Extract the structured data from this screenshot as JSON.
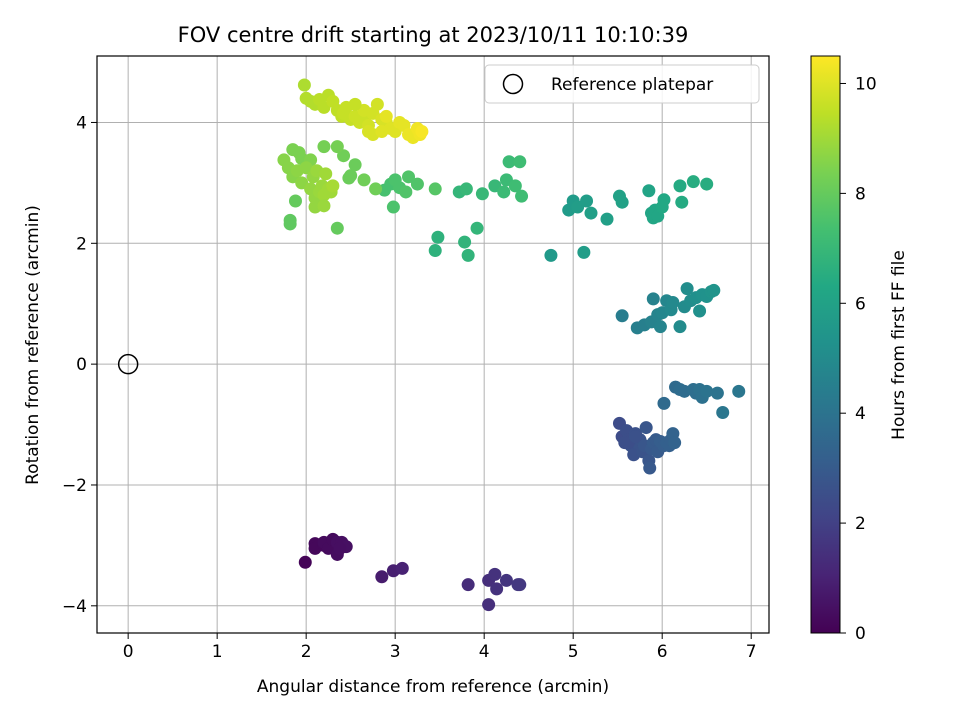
{
  "chart_data": {
    "type": "scatter",
    "title": "FOV centre drift starting at 2023/10/11 10:10:39",
    "xlabel": "Angular distance from reference (arcmin)",
    "ylabel": "Rotation from reference (arcmin)",
    "xlim": [
      -0.35,
      7.2
    ],
    "ylim": [
      -4.45,
      5.1
    ],
    "xticks": [
      0,
      1,
      2,
      3,
      4,
      5,
      6,
      7
    ],
    "yticks": [
      -4,
      -2,
      0,
      2,
      4
    ],
    "grid": true,
    "legend": {
      "position": "top-right",
      "label": "Reference platepar"
    },
    "reference_point": {
      "x": 0,
      "y": 0
    },
    "colorbar": {
      "label": "Hours from first FF file",
      "colormap": "viridis",
      "range": [
        0,
        10.5
      ],
      "ticks": [
        0,
        2,
        4,
        6,
        8,
        10
      ]
    },
    "points": [
      [
        1.99,
        -3.28,
        0.1
      ],
      [
        2.1,
        -2.97,
        0.2
      ],
      [
        2.1,
        -3.05,
        0.2
      ],
      [
        2.2,
        -3.0,
        0.2
      ],
      [
        2.2,
        -2.95,
        0.3
      ],
      [
        2.25,
        -3.05,
        0.3
      ],
      [
        2.3,
        -2.9,
        0.3
      ],
      [
        2.35,
        -3.15,
        0.35
      ],
      [
        2.35,
        -2.95,
        0.4
      ],
      [
        2.4,
        -2.95,
        0.4
      ],
      [
        2.45,
        -3.02,
        0.45
      ],
      [
        2.38,
        -3.05,
        0.4
      ],
      [
        2.85,
        -3.52,
        0.8
      ],
      [
        2.98,
        -3.42,
        0.9
      ],
      [
        3.08,
        -3.38,
        1.0
      ],
      [
        3.82,
        -3.65,
        1.3
      ],
      [
        4.05,
        -3.98,
        1.4
      ],
      [
        4.05,
        -3.58,
        1.4
      ],
      [
        4.12,
        -3.48,
        1.5
      ],
      [
        4.14,
        -3.72,
        1.5
      ],
      [
        4.25,
        -3.58,
        1.6
      ],
      [
        4.4,
        -3.65,
        1.7
      ],
      [
        4.38,
        -3.65,
        1.7
      ],
      [
        5.52,
        -0.98,
        2.4
      ],
      [
        5.55,
        -1.2,
        2.4
      ],
      [
        5.58,
        -1.3,
        2.5
      ],
      [
        5.6,
        -1.1,
        2.5
      ],
      [
        5.62,
        -1.25,
        2.5
      ],
      [
        5.65,
        -1.35,
        2.6
      ],
      [
        5.68,
        -1.5,
        2.6
      ],
      [
        5.7,
        -1.15,
        2.6
      ],
      [
        5.72,
        -1.3,
        2.7
      ],
      [
        5.75,
        -1.25,
        2.7
      ],
      [
        5.78,
        -1.45,
        2.7
      ],
      [
        5.8,
        -1.35,
        2.8
      ],
      [
        5.82,
        -1.05,
        2.8
      ],
      [
        5.85,
        -1.6,
        2.8
      ],
      [
        5.86,
        -1.72,
        2.9
      ],
      [
        5.88,
        -1.4,
        2.9
      ],
      [
        5.9,
        -1.3,
        3.0
      ],
      [
        5.93,
        -1.25,
        3.0
      ],
      [
        5.95,
        -1.45,
        3.0
      ],
      [
        5.98,
        -1.28,
        3.1
      ],
      [
        6.02,
        -1.35,
        3.1
      ],
      [
        6.05,
        -1.3,
        3.2
      ],
      [
        6.08,
        -1.35,
        3.2
      ],
      [
        6.1,
        -1.25,
        3.2
      ],
      [
        6.12,
        -1.15,
        3.3
      ],
      [
        6.14,
        -1.3,
        3.3
      ],
      [
        5.62,
        -1.3,
        2.5
      ],
      [
        5.7,
        -1.2,
        2.6
      ],
      [
        6.02,
        -0.65,
        3.6
      ],
      [
        6.15,
        -0.38,
        3.6
      ],
      [
        6.2,
        -0.42,
        3.7
      ],
      [
        6.25,
        -0.45,
        3.7
      ],
      [
        6.35,
        -0.42,
        3.8
      ],
      [
        6.38,
        -0.48,
        3.8
      ],
      [
        6.42,
        -0.42,
        3.9
      ],
      [
        6.45,
        -0.55,
        3.9
      ],
      [
        6.5,
        -0.45,
        4.0
      ],
      [
        6.62,
        -0.48,
        4.0
      ],
      [
        6.68,
        -0.8,
        4.1
      ],
      [
        6.86,
        -0.45,
        4.1
      ],
      [
        5.55,
        0.8,
        4.4
      ],
      [
        5.72,
        0.6,
        4.5
      ],
      [
        5.8,
        0.65,
        4.5
      ],
      [
        5.88,
        0.7,
        4.6
      ],
      [
        5.9,
        1.08,
        4.6
      ],
      [
        5.95,
        0.82,
        4.7
      ],
      [
        5.98,
        0.62,
        4.7
      ],
      [
        6.0,
        0.85,
        4.8
      ],
      [
        6.05,
        1.05,
        4.8
      ],
      [
        6.1,
        0.9,
        4.9
      ],
      [
        6.12,
        1.02,
        4.9
      ],
      [
        6.2,
        0.62,
        5.0
      ],
      [
        6.25,
        0.95,
        5.0
      ],
      [
        6.28,
        1.25,
        5.1
      ],
      [
        6.32,
        1.05,
        5.1
      ],
      [
        6.38,
        1.1,
        5.2
      ],
      [
        6.42,
        0.88,
        5.2
      ],
      [
        6.45,
        1.15,
        5.3
      ],
      [
        6.5,
        1.12,
        5.3
      ],
      [
        6.55,
        1.2,
        5.4
      ],
      [
        6.58,
        1.22,
        5.4
      ],
      [
        4.75,
        1.8,
        5.6
      ],
      [
        4.95,
        2.55,
        5.7
      ],
      [
        5.0,
        2.7,
        5.7
      ],
      [
        5.05,
        2.6,
        5.8
      ],
      [
        5.12,
        1.85,
        5.8
      ],
      [
        5.15,
        2.7,
        5.8
      ],
      [
        5.2,
        2.5,
        5.9
      ],
      [
        5.38,
        2.4,
        5.9
      ],
      [
        5.52,
        2.78,
        6.0
      ],
      [
        5.55,
        2.68,
        6.0
      ],
      [
        5.85,
        2.87,
        6.1
      ],
      [
        5.88,
        2.5,
        6.1
      ],
      [
        5.9,
        2.42,
        6.2
      ],
      [
        5.92,
        2.55,
        6.2
      ],
      [
        5.95,
        2.45,
        6.2
      ],
      [
        6.0,
        2.6,
        6.3
      ],
      [
        6.02,
        2.72,
        6.3
      ],
      [
        6.2,
        2.95,
        6.4
      ],
      [
        6.22,
        2.68,
        6.4
      ],
      [
        6.35,
        3.02,
        6.5
      ],
      [
        6.5,
        2.98,
        6.5
      ],
      [
        3.45,
        1.88,
        6.7
      ],
      [
        3.48,
        2.1,
        6.7
      ],
      [
        3.78,
        2.02,
        6.8
      ],
      [
        3.82,
        1.8,
        6.8
      ],
      [
        3.92,
        2.25,
        6.9
      ],
      [
        3.72,
        2.85,
        6.9
      ],
      [
        3.8,
        2.9,
        7.0
      ],
      [
        3.98,
        2.82,
        7.0
      ],
      [
        4.12,
        2.95,
        7.0
      ],
      [
        4.22,
        2.85,
        7.1
      ],
      [
        4.25,
        3.05,
        7.1
      ],
      [
        4.28,
        3.35,
        7.1
      ],
      [
        4.35,
        2.95,
        7.2
      ],
      [
        4.4,
        3.35,
        7.2
      ],
      [
        4.42,
        2.78,
        7.2
      ],
      [
        2.88,
        2.88,
        7.4
      ],
      [
        2.95,
        2.98,
        7.4
      ],
      [
        2.98,
        2.6,
        7.5
      ],
      [
        3.0,
        3.05,
        7.5
      ],
      [
        3.05,
        2.92,
        7.5
      ],
      [
        3.12,
        2.85,
        7.6
      ],
      [
        3.15,
        3.1,
        7.6
      ],
      [
        3.25,
        2.98,
        7.6
      ],
      [
        3.45,
        2.9,
        7.7
      ],
      [
        1.82,
        2.32,
        7.9
      ],
      [
        1.82,
        2.38,
        7.9
      ],
      [
        1.88,
        2.7,
        8.0
      ],
      [
        2.35,
        2.25,
        8.0
      ],
      [
        2.48,
        3.08,
        8.1
      ],
      [
        2.5,
        3.12,
        8.1
      ],
      [
        2.55,
        3.3,
        8.1
      ],
      [
        2.65,
        3.05,
        8.2
      ],
      [
        2.78,
        2.9,
        8.2
      ],
      [
        2.42,
        3.45,
        8.2
      ],
      [
        2.35,
        3.6,
        8.3
      ],
      [
        2.2,
        3.6,
        8.3
      ],
      [
        1.95,
        3.4,
        8.4
      ],
      [
        1.85,
        3.55,
        8.4
      ],
      [
        1.92,
        3.5,
        8.4
      ],
      [
        2.05,
        3.38,
        8.5
      ],
      [
        1.75,
        3.38,
        8.6
      ],
      [
        1.8,
        3.25,
        8.6
      ],
      [
        1.85,
        3.1,
        8.6
      ],
      [
        1.9,
        3.2,
        8.7
      ],
      [
        1.95,
        3.0,
        8.7
      ],
      [
        2.0,
        3.25,
        8.7
      ],
      [
        2.05,
        2.9,
        8.8
      ],
      [
        2.08,
        3.1,
        8.8
      ],
      [
        2.1,
        2.75,
        8.8
      ],
      [
        2.12,
        3.2,
        8.9
      ],
      [
        2.15,
        2.85,
        8.9
      ],
      [
        2.18,
        2.95,
        8.9
      ],
      [
        2.2,
        2.8,
        9.0
      ],
      [
        2.22,
        3.15,
        9.0
      ],
      [
        2.25,
        2.9,
        9.0
      ],
      [
        2.28,
        2.85,
        9.0
      ],
      [
        2.3,
        2.95,
        9.1
      ],
      [
        2.1,
        2.6,
        8.8
      ],
      [
        2.2,
        2.62,
        8.9
      ],
      [
        1.98,
        4.62,
        9.2
      ],
      [
        2.0,
        4.4,
        9.3
      ],
      [
        2.05,
        4.35,
        9.3
      ],
      [
        2.1,
        4.3,
        9.3
      ],
      [
        2.15,
        4.38,
        9.4
      ],
      [
        2.2,
        4.25,
        9.4
      ],
      [
        2.25,
        4.45,
        9.4
      ],
      [
        2.3,
        4.35,
        9.5
      ],
      [
        2.35,
        4.2,
        9.5
      ],
      [
        2.4,
        4.1,
        9.5
      ],
      [
        2.42,
        4.15,
        9.6
      ],
      [
        2.45,
        4.25,
        9.6
      ],
      [
        2.5,
        4.05,
        9.6
      ],
      [
        2.55,
        4.1,
        9.7
      ],
      [
        2.6,
        4.0,
        9.7
      ],
      [
        2.65,
        4.05,
        9.7
      ],
      [
        2.7,
        3.95,
        9.8
      ],
      [
        2.75,
        4.15,
        9.8
      ],
      [
        2.8,
        4.3,
        9.8
      ],
      [
        2.85,
        4.05,
        9.9
      ],
      [
        2.9,
        4.0,
        9.9
      ],
      [
        2.95,
        3.9,
        10.0
      ],
      [
        3.0,
        3.85,
        10.0
      ],
      [
        3.05,
        4.0,
        10.1
      ],
      [
        3.1,
        3.95,
        10.1
      ],
      [
        3.15,
        3.8,
        10.2
      ],
      [
        3.2,
        3.75,
        10.2
      ],
      [
        3.25,
        3.9,
        10.3
      ],
      [
        3.28,
        3.8,
        10.3
      ],
      [
        3.3,
        3.85,
        10.4
      ],
      [
        2.7,
        3.85,
        9.9
      ],
      [
        2.75,
        3.8,
        9.9
      ],
      [
        2.85,
        3.85,
        10.0
      ],
      [
        2.9,
        4.1,
        10.1
      ],
      [
        2.65,
        4.2,
        9.8
      ],
      [
        2.55,
        4.3,
        9.6
      ]
    ]
  }
}
